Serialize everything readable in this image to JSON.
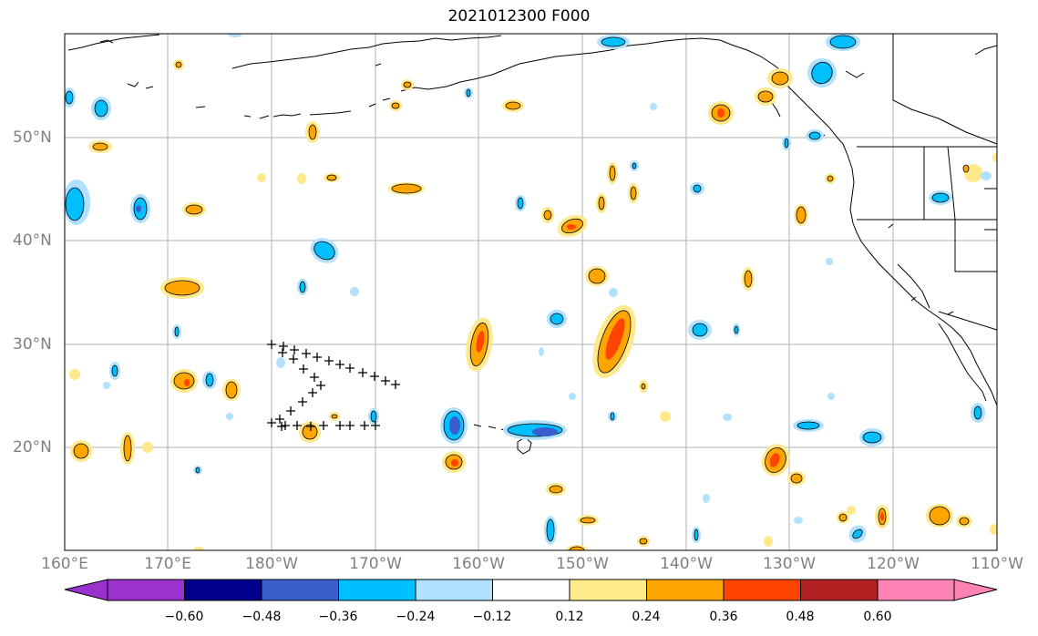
{
  "title": "2021012300 F000",
  "longitude_labels": [
    "160°E",
    "170°E",
    "180°W",
    "170°W",
    "160°W",
    "150°W",
    "140°W",
    "130°W",
    "120°W",
    "110°W"
  ],
  "latitude_labels": [
    "50°N",
    "40°N",
    "30°N",
    "20°N"
  ],
  "colorbar": {
    "levels": [
      "−0.60",
      "−0.48",
      "−0.36",
      "−0.24",
      "−0.12",
      "0.12",
      "0.24",
      "0.36",
      "0.48",
      "0.60"
    ],
    "colors": [
      "#9a32cd",
      "#00008b",
      "#3a5fcd",
      "#00bfff",
      "#b0e2ff",
      "#ffffff",
      "#ffec8b",
      "#ffa500",
      "#ff4500",
      "#b22222",
      "#ff83b4"
    ]
  },
  "marker": "+",
  "colors": {
    "positive_light": "#ffe98a",
    "positive_mid": "#ffa500",
    "positive_high": "#ff4500",
    "negative_light": "#b0e2ff",
    "negative_mid": "#00bfff",
    "negative_high": "#3a5fcd",
    "grid": "#b0b0b0",
    "coast": "#000000"
  }
}
